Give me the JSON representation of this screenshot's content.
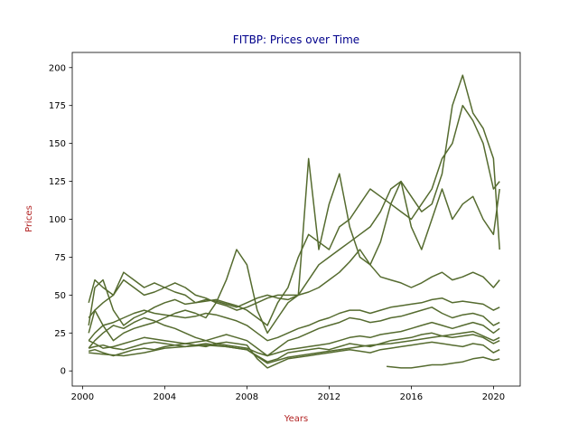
{
  "chart_data": {
    "type": "line",
    "title": "FITBP: Prices over Time",
    "xlabel": "Years",
    "ylabel": "Prices",
    "xlim": [
      1999.5,
      2021.3
    ],
    "ylim": [
      -10,
      210
    ],
    "x_ticks": [
      2000,
      2004,
      2008,
      2012,
      2016,
      2020
    ],
    "x_tick_labels": [
      "2000",
      "2004",
      "2008",
      "2012",
      "2016",
      "2020"
    ],
    "y_ticks": [
      0,
      25,
      50,
      75,
      100,
      125,
      150,
      175,
      200
    ],
    "y_tick_labels": [
      "0",
      "25",
      "50",
      "75",
      "100",
      "125",
      "150",
      "175",
      "200"
    ],
    "grid": false,
    "legend": "none",
    "colors": {
      "series": "#556b2f",
      "title": "#00008b",
      "axis_label": "#b22222",
      "axes": "#000000"
    },
    "series": [
      {
        "x": [
          2000.3,
          2000.6,
          2001,
          2001.5,
          2002,
          2002.5,
          2003,
          2003.5,
          2004,
          2004.5,
          2005,
          2005.5,
          2006,
          2006.5,
          2007,
          2007.5,
          2008,
          2008.5,
          2009,
          2009.5,
          2010,
          2010.5,
          2011,
          2011.5,
          2012,
          2012.5,
          2013,
          2013.5,
          2014,
          2014.5,
          2015,
          2015.5,
          2016,
          2016.5,
          2017,
          2017.5,
          2018,
          2018.5,
          2019,
          2019.5,
          2020,
          2020.3
        ],
        "y": [
          30,
          55,
          60,
          40,
          30,
          35,
          38,
          42,
          45,
          47,
          44,
          45,
          46,
          47,
          45,
          43,
          40,
          35,
          30,
          45,
          55,
          75,
          90,
          85,
          80,
          95,
          100,
          110,
          120,
          115,
          110,
          105,
          100,
          110,
          120,
          140,
          150,
          175,
          165,
          150,
          120,
          125
        ]
      },
      {
        "x": [
          2000.3,
          2000.6,
          2001,
          2001.5,
          2002,
          2002.5,
          2003,
          2003.5,
          2004,
          2004.5,
          2005,
          2005.5,
          2006,
          2006.5,
          2007,
          2007.5,
          2008,
          2008.5,
          2009,
          2009.5,
          2010,
          2010.5,
          2011,
          2011.5,
          2012,
          2012.5,
          2013,
          2013.5,
          2014,
          2014.5,
          2015,
          2015.5,
          2016,
          2016.5,
          2017,
          2017.5,
          2018,
          2018.5,
          2019,
          2019.5,
          2020,
          2020.3
        ],
        "y": [
          45,
          60,
          55,
          50,
          65,
          60,
          55,
          58,
          55,
          52,
          50,
          45,
          47,
          46,
          44,
          42,
          45,
          48,
          50,
          48,
          47,
          50,
          60,
          70,
          75,
          80,
          85,
          90,
          95,
          105,
          120,
          125,
          115,
          105,
          110,
          130,
          175,
          195,
          170,
          160,
          140,
          80
        ]
      },
      {
        "x": [
          2000.3,
          2000.6,
          2001,
          2001.5,
          2002,
          2002.5,
          2003,
          2003.5,
          2004,
          2004.5,
          2005,
          2005.5,
          2006,
          2006.5,
          2007,
          2007.5,
          2008,
          2008.5,
          2009,
          2009.5,
          2010,
          2010.5,
          2011,
          2011.5,
          2012,
          2012.5,
          2013,
          2013.5,
          2014,
          2014.5,
          2015,
          2015.5,
          2016,
          2016.5,
          2017,
          2017.5,
          2018,
          2018.5,
          2019,
          2019.5,
          2020,
          2020.3
        ],
        "y": [
          35,
          40,
          30,
          20,
          25,
          28,
          30,
          32,
          35,
          38,
          40,
          38,
          35,
          45,
          60,
          80,
          70,
          40,
          25,
          35,
          45,
          50,
          140,
          80,
          110,
          130,
          95,
          75,
          70,
          85,
          110,
          125,
          95,
          80,
          100,
          120,
          100,
          110,
          115,
          100,
          90,
          120
        ]
      },
      {
        "x": [
          2000.3,
          2000.6,
          2001,
          2001.5,
          2002,
          2002.5,
          2003,
          2003.5,
          2004,
          2004.5,
          2005,
          2005.5,
          2006,
          2006.5,
          2007,
          2007.5,
          2008,
          2008.5,
          2009,
          2009.5,
          2010,
          2010.5,
          2011,
          2011.5,
          2012,
          2012.5,
          2013,
          2013.5,
          2014,
          2014.5,
          2015,
          2015.5,
          2016,
          2016.5,
          2017,
          2017.5,
          2018,
          2018.5,
          2019,
          2019.5,
          2020,
          2020.3
        ],
        "y": [
          25,
          40,
          45,
          50,
          60,
          55,
          50,
          52,
          55,
          58,
          55,
          50,
          48,
          45,
          43,
          40,
          42,
          45,
          48,
          50,
          50,
          50,
          52,
          55,
          60,
          65,
          72,
          80,
          70,
          62,
          60,
          58,
          55,
          58,
          62,
          65,
          60,
          62,
          65,
          62,
          55,
          60
        ]
      },
      {
        "x": [
          2000.3,
          2000.6,
          2001,
          2001.5,
          2002,
          2002.5,
          2003,
          2003.5,
          2004,
          2004.5,
          2005,
          2005.5,
          2006,
          2006.5,
          2007,
          2007.5,
          2008,
          2008.5,
          2009,
          2009.5,
          2010,
          2010.5,
          2011,
          2011.5,
          2012,
          2012.5,
          2013,
          2013.5,
          2014,
          2014.5,
          2015,
          2015.5,
          2016,
          2016.5,
          2017,
          2017.5,
          2018,
          2018.5,
          2019,
          2019.5,
          2020,
          2020.3
        ],
        "y": [
          20,
          25,
          30,
          32,
          35,
          38,
          40,
          38,
          37,
          36,
          35,
          36,
          38,
          37,
          35,
          33,
          30,
          25,
          20,
          22,
          25,
          28,
          30,
          33,
          35,
          38,
          40,
          40,
          38,
          40,
          42,
          43,
          44,
          45,
          47,
          48,
          45,
          46,
          45,
          44,
          40,
          42
        ]
      },
      {
        "x": [
          2000.3,
          2000.6,
          2001,
          2001.5,
          2002,
          2002.5,
          2003,
          2003.5,
          2004,
          2004.5,
          2005,
          2005.5,
          2006,
          2006.5,
          2007,
          2007.5,
          2008,
          2008.5,
          2009,
          2009.5,
          2010,
          2010.5,
          2011,
          2011.5,
          2012,
          2012.5,
          2013,
          2013.5,
          2014,
          2014.5,
          2015,
          2015.5,
          2016,
          2016.5,
          2017,
          2017.5,
          2018,
          2018.5,
          2019,
          2019.5,
          2020,
          2020.3
        ],
        "y": [
          15,
          20,
          25,
          30,
          28,
          32,
          35,
          33,
          30,
          28,
          25,
          22,
          20,
          22,
          24,
          22,
          20,
          15,
          10,
          15,
          20,
          22,
          25,
          28,
          30,
          32,
          35,
          34,
          32,
          33,
          35,
          36,
          38,
          40,
          42,
          38,
          35,
          37,
          38,
          36,
          30,
          32
        ]
      },
      {
        "x": [
          2000.3,
          2000.6,
          2001,
          2001.5,
          2002,
          2002.5,
          2003,
          2003.5,
          2004,
          2004.5,
          2005,
          2005.5,
          2006,
          2006.5,
          2007,
          2007.5,
          2008,
          2008.5,
          2009,
          2009.5,
          2010,
          2010.5,
          2011,
          2011.5,
          2012,
          2012.5,
          2013,
          2013.5,
          2014,
          2014.5,
          2015,
          2015.5,
          2016,
          2016.5,
          2017,
          2017.5,
          2018,
          2018.5,
          2019,
          2019.5,
          2020,
          2020.3
        ],
        "y": [
          20,
          18,
          15,
          16,
          18,
          20,
          22,
          21,
          20,
          19,
          18,
          19,
          20,
          18,
          17,
          16,
          15,
          12,
          10,
          12,
          14,
          15,
          16,
          17,
          18,
          20,
          22,
          23,
          22,
          24,
          25,
          26,
          28,
          30,
          32,
          30,
          28,
          30,
          32,
          30,
          25,
          28
        ]
      },
      {
        "x": [
          2000.3,
          2000.6,
          2001,
          2001.5,
          2002,
          2002.5,
          2003,
          2003.5,
          2004,
          2004.5,
          2005,
          2005.5,
          2006,
          2006.5,
          2007,
          2007.5,
          2008,
          2008.5,
          2009,
          2009.5,
          2010,
          2010.5,
          2011,
          2011.5,
          2012,
          2012.5,
          2013,
          2013.5,
          2014,
          2014.5,
          2015,
          2015.5,
          2016,
          2016.5,
          2017,
          2017.5,
          2018,
          2018.5,
          2019,
          2019.5,
          2020,
          2020.3
        ],
        "y": [
          15,
          16,
          17,
          15,
          14,
          16,
          18,
          19,
          18,
          17,
          16,
          17,
          18,
          17,
          16,
          15,
          14,
          10,
          6,
          8,
          12,
          13,
          14,
          15,
          14,
          16,
          18,
          17,
          16,
          18,
          20,
          21,
          22,
          24,
          25,
          23,
          22,
          23,
          24,
          22,
          18,
          20
        ]
      },
      {
        "x": [
          2000.3,
          2000.6,
          2001,
          2001.5,
          2002,
          2002.5,
          2003,
          2003.5,
          2004,
          2004.5,
          2005,
          2005.5,
          2006,
          2006.5,
          2007,
          2007.5,
          2008,
          2008.5,
          2009,
          2009.5,
          2010,
          2010.5,
          2011,
          2011.5,
          2012,
          2012.5,
          2013,
          2013.5,
          2014,
          2014.5,
          2015,
          2015.5,
          2016,
          2016.5,
          2017,
          2017.5,
          2018,
          2018.5,
          2019,
          2019.5,
          2020,
          2020.3
        ],
        "y": [
          13,
          14,
          12,
          10,
          12,
          14,
          15,
          14,
          16,
          17,
          18,
          17,
          16,
          18,
          19,
          18,
          17,
          8,
          2,
          5,
          8,
          9,
          10,
          11,
          12,
          13,
          14,
          13,
          12,
          14,
          15,
          16,
          17,
          18,
          19,
          18,
          17,
          16,
          18,
          17,
          12,
          14
        ]
      },
      {
        "x": [
          2014.8,
          2015.5,
          2016,
          2016.5,
          2017,
          2017.5,
          2018,
          2018.5,
          2019,
          2019.5,
          2020,
          2020.3
        ],
        "y": [
          3,
          2,
          2,
          3,
          4,
          4,
          5,
          6,
          8,
          9,
          7,
          8
        ]
      },
      {
        "x": [
          2000.3,
          2001,
          2002,
          2003,
          2004,
          2005,
          2006,
          2007,
          2008,
          2009,
          2010,
          2011,
          2012,
          2013,
          2014,
          2015,
          2016,
          2017,
          2018,
          2019,
          2020,
          2020.3
        ],
        "y": [
          12,
          11,
          10,
          12,
          15,
          16,
          17,
          16,
          14,
          5,
          9,
          11,
          13,
          15,
          17,
          18,
          20,
          22,
          24,
          26,
          20,
          22
        ]
      }
    ]
  }
}
